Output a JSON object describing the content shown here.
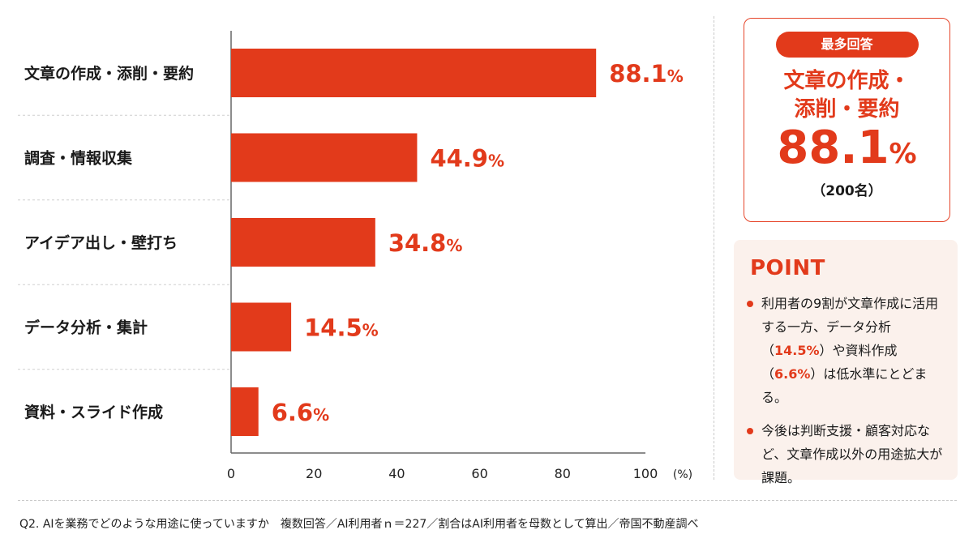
{
  "chart_data": {
    "type": "bar",
    "orientation": "horizontal",
    "categories": [
      "文章の作成・添削・要約",
      "調査・情報収集",
      "アイデア出し・壁打ち",
      "データ分析・集計",
      "資料・スライド作成"
    ],
    "values": [
      88.1,
      44.9,
      34.8,
      14.5,
      6.6
    ],
    "value_labels": [
      "88.1",
      "44.9",
      "34.8",
      "14.5",
      "6.6"
    ],
    "value_suffix": "%",
    "xlim": [
      0,
      100
    ],
    "xticks": [
      0,
      20,
      40,
      60,
      80,
      100
    ],
    "xtick_labels": [
      "0",
      "20",
      "40",
      "60",
      "80",
      "100"
    ],
    "xunit_label": "(%)",
    "bar_color": "#e23a1b"
  },
  "highlight": {
    "badge": "最多回答",
    "category_line1": "文章の作成・",
    "category_line2": "添削・要約",
    "value": "88.1",
    "unit": "%",
    "count": "（200名）"
  },
  "point": {
    "title": "POINT",
    "item1": {
      "t1": "利用者の9割が文章作成に活用する一方、データ分析（",
      "h1": "14.5%",
      "t2": "）や資料作成（",
      "h2": "6.6%",
      "t3": "）は低水準にとどまる。"
    },
    "item2": "今後は判断支援・顧客対応など、文章作成以外の用途拡大が課題。"
  },
  "footnote": "Q2. AIを業務でどのような用途に使っていますか　複数回答／AI利用者ｎ＝227／割合はAI利用者を母数として算出／帝国不動産調べ",
  "colors": {
    "accent": "#e23a1b",
    "point_bg": "#fbf1ec"
  }
}
